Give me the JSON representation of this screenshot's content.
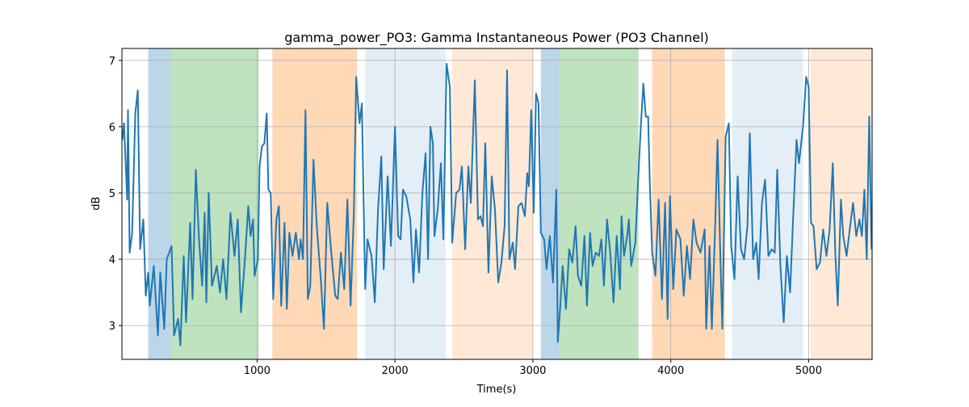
{
  "chart_data": {
    "type": "line",
    "title": "gamma_power_PO3: Gamma Instantaneous Power (PO3 Channel)",
    "xlabel": "Time(s)",
    "ylabel": "dB",
    "xlim": [
      20,
      5460
    ],
    "ylim": [
      2.49,
      7.18
    ],
    "xticks": [
      1000,
      2000,
      3000,
      4000,
      5000
    ],
    "yticks": [
      3,
      4,
      5,
      6,
      7
    ],
    "grid": true,
    "spans": [
      {
        "start": 210,
        "end": 374,
        "color": "rgba(31,119,180,0.3)"
      },
      {
        "start": 374,
        "end": 1012,
        "color": "rgba(44,160,44,0.3)"
      },
      {
        "start": 1111,
        "end": 1725,
        "color": "rgba(255,127,14,0.3)"
      },
      {
        "start": 1784,
        "end": 2368,
        "color": "rgba(31,119,180,0.12)"
      },
      {
        "start": 2415,
        "end": 3000,
        "color": "rgba(255,127,14,0.17)"
      },
      {
        "start": 3058,
        "end": 3193,
        "color": "rgba(31,119,180,0.3)"
      },
      {
        "start": 3193,
        "end": 3766,
        "color": "rgba(44,160,44,0.3)"
      },
      {
        "start": 3865,
        "end": 4392,
        "color": "rgba(255,127,14,0.3)"
      },
      {
        "start": 4444,
        "end": 4959,
        "color": "rgba(31,119,180,0.12)"
      },
      {
        "start": 5012,
        "end": 5460,
        "color": "rgba(255,127,14,0.17)"
      }
    ],
    "series": [
      {
        "color": "#1f77b4",
        "x": [
          23,
          35,
          58,
          64,
          76,
          94,
          117,
          135,
          152,
          175,
          193,
          211,
          222,
          251,
          281,
          298,
          327,
          345,
          380,
          398,
          427,
          444,
          468,
          485,
          515,
          532,
          556,
          579,
          602,
          620,
          632,
          649,
          673,
          708,
          731,
          754,
          778,
          807,
          836,
          860,
          883,
          912,
          936,
          953,
          971,
          982,
          1006,
          1018,
          1035,
          1053,
          1070,
          1082,
          1099,
          1117,
          1140,
          1158,
          1175,
          1199,
          1216,
          1234,
          1257,
          1281,
          1304,
          1316,
          1333,
          1351,
          1368,
          1386,
          1409,
          1433,
          1462,
          1485,
          1509,
          1538,
          1567,
          1585,
          1608,
          1632,
          1655,
          1678,
          1702,
          1719,
          1743,
          1760,
          1784,
          1801,
          1830,
          1854,
          1877,
          1901,
          1918,
          1947,
          1971,
          2000,
          2023,
          2041,
          2058,
          2082,
          2111,
          2134,
          2152,
          2175,
          2199,
          2222,
          2240,
          2257,
          2275,
          2286,
          2310,
          2333,
          2351,
          2374,
          2398,
          2415,
          2444,
          2468,
          2485,
          2509,
          2532,
          2550,
          2579,
          2602,
          2620,
          2638,
          2655,
          2678,
          2702,
          2725,
          2749,
          2772,
          2795,
          2813,
          2830,
          2854,
          2871,
          2895,
          2918,
          2942,
          2959,
          2971,
          2988,
          3006,
          3023,
          3041,
          3058,
          3082,
          3099,
          3123,
          3146,
          3170,
          3181,
          3199,
          3216,
          3240,
          3263,
          3286,
          3310,
          3327,
          3351,
          3374,
          3392,
          3415,
          3433,
          3456,
          3479,
          3497,
          3515,
          3538,
          3561,
          3585,
          3608,
          3632,
          3643,
          3661,
          3684,
          3696,
          3713,
          3743,
          3766,
          3784,
          3801,
          3819,
          3836,
          3848,
          3865,
          3889,
          3912,
          3936,
          3959,
          3977,
          3994,
          4018,
          4041,
          4070,
          4094,
          4117,
          4140,
          4164,
          4187,
          4216,
          4246,
          4257,
          4281,
          4298,
          4322,
          4339,
          4357,
          4374,
          4398,
          4421,
          4438,
          4462,
          4485,
          4509,
          4532,
          4556,
          4573,
          4597,
          4620,
          4637,
          4661,
          4684,
          4708,
          4731,
          4754,
          4772,
          4795,
          4819,
          4842,
          4865,
          4889,
          4912,
          4930,
          4959,
          4982,
          5000,
          5017,
          5035,
          5058,
          5082,
          5105,
          5129,
          5152,
          5175,
          5193,
          5211,
          5234,
          5251,
          5275,
          5298,
          5322,
          5345,
          5368,
          5386,
          5404,
          5421,
          5439,
          5456
        ],
        "values": [
          5.8,
          6.05,
          4.9,
          6.25,
          4.1,
          4.4,
          6.2,
          6.55,
          4.15,
          4.6,
          3.45,
          3.8,
          3.3,
          3.9,
          2.85,
          3.8,
          2.95,
          4.0,
          4.2,
          2.85,
          3.1,
          2.7,
          4.05,
          3.05,
          4.55,
          3.4,
          5.35,
          4.3,
          3.6,
          4.7,
          3.35,
          5.0,
          3.6,
          3.9,
          3.5,
          4.0,
          3.4,
          4.7,
          4.05,
          4.6,
          3.2,
          4.0,
          4.8,
          4.35,
          4.6,
          3.75,
          4.0,
          5.4,
          5.7,
          5.75,
          6.2,
          5.05,
          5.0,
          3.4,
          4.6,
          4.8,
          3.3,
          4.55,
          3.25,
          4.4,
          4.05,
          4.4,
          4.0,
          4.3,
          4.0,
          6.25,
          3.4,
          3.6,
          5.5,
          4.5,
          3.7,
          2.95,
          4.85,
          4.1,
          3.45,
          3.4,
          4.1,
          3.55,
          4.9,
          3.3,
          4.7,
          6.75,
          6.05,
          6.35,
          3.55,
          4.3,
          4.05,
          3.35,
          4.75,
          5.55,
          3.85,
          5.25,
          4.2,
          6.0,
          4.35,
          4.3,
          5.05,
          4.95,
          4.6,
          3.65,
          4.45,
          3.8,
          5.0,
          5.6,
          4.0,
          6.0,
          5.75,
          4.35,
          4.75,
          5.45,
          4.3,
          6.95,
          6.6,
          4.25,
          5.0,
          5.05,
          5.4,
          4.15,
          5.4,
          4.85,
          6.7,
          4.6,
          4.65,
          4.5,
          5.75,
          3.8,
          5.25,
          4.75,
          3.65,
          3.95,
          4.5,
          6.85,
          4.0,
          4.25,
          3.85,
          4.8,
          4.85,
          4.65,
          5.3,
          5.1,
          6.25,
          4.7,
          6.5,
          6.35,
          4.4,
          4.3,
          3.85,
          4.35,
          3.65,
          5.05,
          2.75,
          3.3,
          3.9,
          3.25,
          4.15,
          3.95,
          4.5,
          3.75,
          3.6,
          4.35,
          3.3,
          4.4,
          3.9,
          4.1,
          4.05,
          4.3,
          3.6,
          4.6,
          4.1,
          3.35,
          4.35,
          3.55,
          4.65,
          4.05,
          4.35,
          4.6,
          3.9,
          4.25,
          5.3,
          6.05,
          6.65,
          6.15,
          6.15,
          5.15,
          4.1,
          3.75,
          4.9,
          3.4,
          4.85,
          3.1,
          4.95,
          3.55,
          4.45,
          4.3,
          3.45,
          4.2,
          3.7,
          4.6,
          4.25,
          4.1,
          4.45,
          2.95,
          4.2,
          2.95,
          4.5,
          5.8,
          4.25,
          2.95,
          5.85,
          6.05,
          4.2,
          3.7,
          5.25,
          4.15,
          4.0,
          4.5,
          5.9,
          4.0,
          4.25,
          3.7,
          4.85,
          5.2,
          4.05,
          4.15,
          4.1,
          5.35,
          3.9,
          3.05,
          4.05,
          3.5,
          4.7,
          5.8,
          5.45,
          6.0,
          6.75,
          6.6,
          4.55,
          4.5,
          3.85,
          3.95,
          4.45,
          4.05,
          4.45,
          5.45,
          4.1,
          3.3,
          4.9,
          4.35,
          4.05,
          4.45,
          4.85,
          4.35,
          4.6,
          4.35,
          5.05,
          4.0,
          6.15,
          4.15
        ]
      }
    ]
  }
}
